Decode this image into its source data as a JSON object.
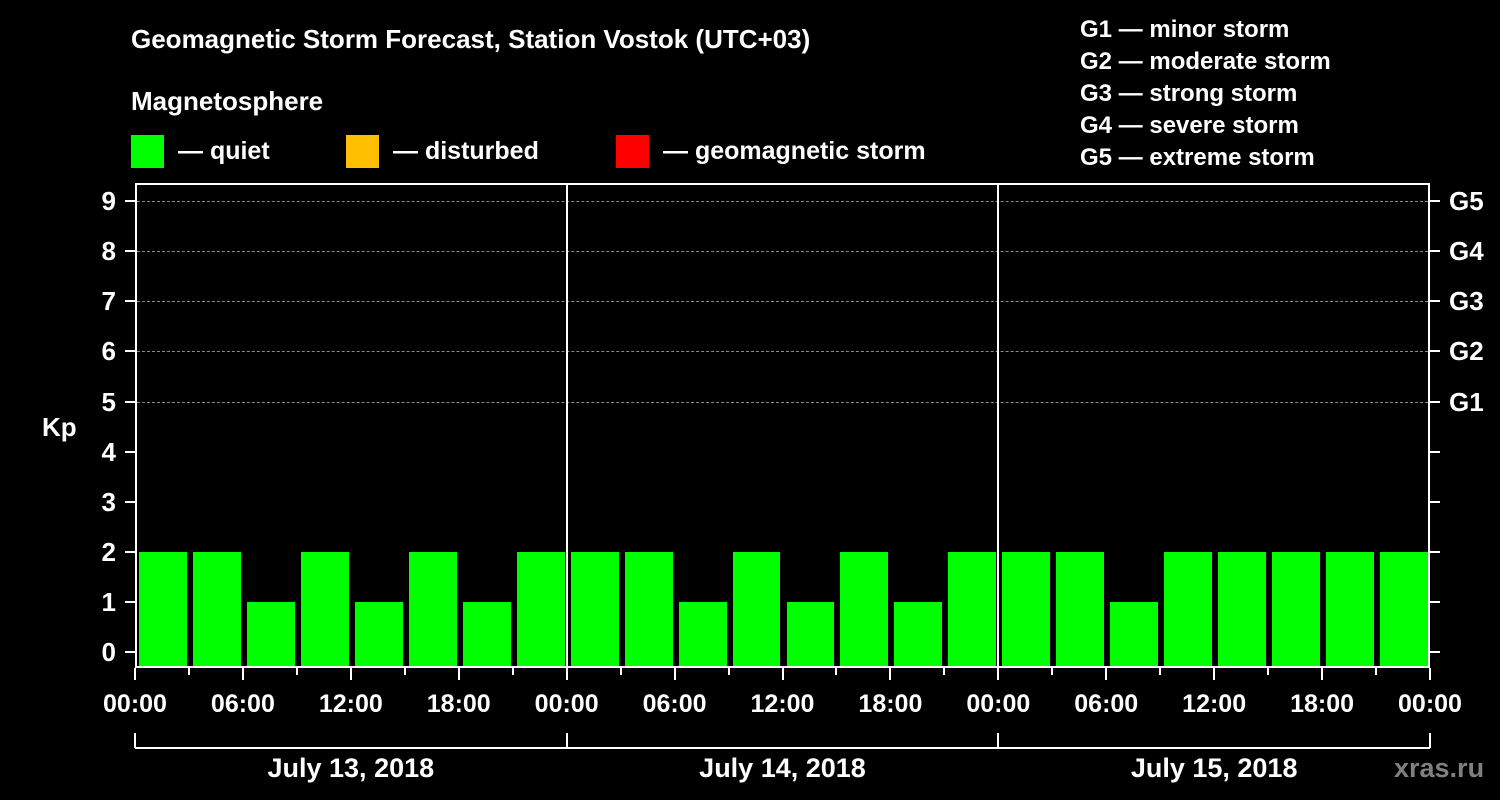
{
  "title": "Geomagnetic Storm Forecast, Station Vostok (UTC+03)",
  "subtitle": "Magnetosphere",
  "legend": [
    {
      "label": "— quiet",
      "color": "#00ff00"
    },
    {
      "label": "— disturbed",
      "color": "#ffbf00"
    },
    {
      "label": "— geomagnetic storm",
      "color": "#ff0000"
    }
  ],
  "g_scale_legend": [
    "G1 — minor storm",
    "G2 — moderate storm",
    "G3 — strong storm",
    "G4 — severe storm",
    "G5 — extreme storm"
  ],
  "y_axis": {
    "label": "Kp",
    "ticks": [
      "0",
      "1",
      "2",
      "3",
      "4",
      "5",
      "6",
      "7",
      "8",
      "9"
    ]
  },
  "right_axis": {
    "ticks": [
      "G1",
      "G2",
      "G3",
      "G4",
      "G5"
    ]
  },
  "x_axis": {
    "time_ticks": [
      "00:00",
      "06:00",
      "12:00",
      "18:00",
      "00:00",
      "06:00",
      "12:00",
      "18:00",
      "00:00",
      "06:00",
      "12:00",
      "18:00",
      "00:00"
    ]
  },
  "dates": [
    "July 13, 2018",
    "July 14, 2018",
    "July 15, 2018"
  ],
  "watermark": "xras.ru",
  "chart_data": {
    "type": "bar",
    "title": "Geomagnetic Storm Forecast, Station Vostok (UTC+03)",
    "xlabel": "",
    "ylabel": "Kp",
    "ylim": [
      0,
      9
    ],
    "grid": true,
    "legend_position": "top",
    "categories": [
      "Jul 13 00-03",
      "Jul 13 03-06",
      "Jul 13 06-09",
      "Jul 13 09-12",
      "Jul 13 12-15",
      "Jul 13 15-18",
      "Jul 13 18-21",
      "Jul 13 21-24",
      "Jul 14 00-03",
      "Jul 14 03-06",
      "Jul 14 06-09",
      "Jul 14 09-12",
      "Jul 14 12-15",
      "Jul 14 15-18",
      "Jul 14 18-21",
      "Jul 14 21-24",
      "Jul 15 00-03",
      "Jul 15 03-06",
      "Jul 15 06-09",
      "Jul 15 09-12",
      "Jul 15 12-15",
      "Jul 15 15-18",
      "Jul 15 18-21",
      "Jul 15 21-24"
    ],
    "values": [
      2,
      2,
      1,
      2,
      1,
      2,
      1,
      2,
      2,
      2,
      1,
      2,
      1,
      2,
      1,
      2,
      2,
      2,
      1,
      2,
      2,
      2,
      2,
      2
    ],
    "status": [
      "quiet",
      "quiet",
      "quiet",
      "quiet",
      "quiet",
      "quiet",
      "quiet",
      "quiet",
      "quiet",
      "quiet",
      "quiet",
      "quiet",
      "quiet",
      "quiet",
      "quiet",
      "quiet",
      "quiet",
      "quiet",
      "quiet",
      "quiet",
      "quiet",
      "quiet",
      "quiet",
      "quiet"
    ],
    "right_axis_mapping": {
      "G1": 5,
      "G2": 6,
      "G3": 7,
      "G4": 8,
      "G5": 9
    },
    "x_tick_labels": [
      "00:00",
      "06:00",
      "12:00",
      "18:00",
      "00:00",
      "06:00",
      "12:00",
      "18:00",
      "00:00",
      "06:00",
      "12:00",
      "18:00",
      "00:00"
    ],
    "date_labels": [
      "July 13, 2018",
      "July 14, 2018",
      "July 15, 2018"
    ]
  }
}
